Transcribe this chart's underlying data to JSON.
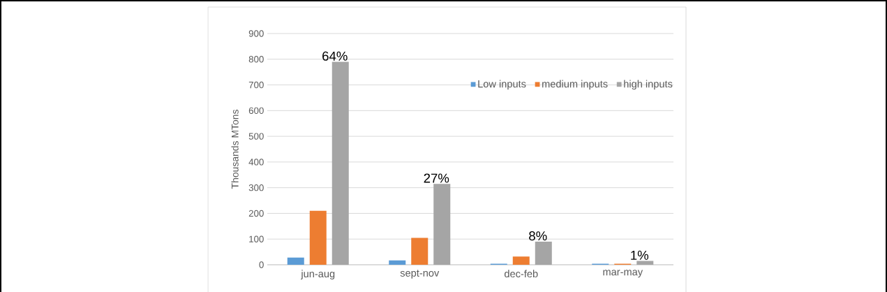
{
  "chart_data": {
    "type": "bar",
    "categories": [
      "jun-aug",
      "sept-nov",
      "dec-feb",
      "mar-may"
    ],
    "series": [
      {
        "name": "Low inputs",
        "color": "#5b9bd5",
        "values": [
          28,
          17,
          4,
          4
        ]
      },
      {
        "name": "medium inputs",
        "color": "#ed7d31",
        "values": [
          210,
          105,
          32,
          4
        ]
      },
      {
        "name": "high inputs",
        "color": "#a5a5a5",
        "values": [
          790,
          315,
          90,
          15
        ]
      }
    ],
    "ylabel": "Thousands MTons",
    "ylim": [
      0,
      900
    ],
    "yticks": [
      0,
      100,
      200,
      300,
      400,
      500,
      600,
      700,
      800,
      900
    ],
    "grid": "y",
    "legend": "top right",
    "annotations": [
      "64%",
      "27%",
      "8%",
      "1%"
    ]
  }
}
